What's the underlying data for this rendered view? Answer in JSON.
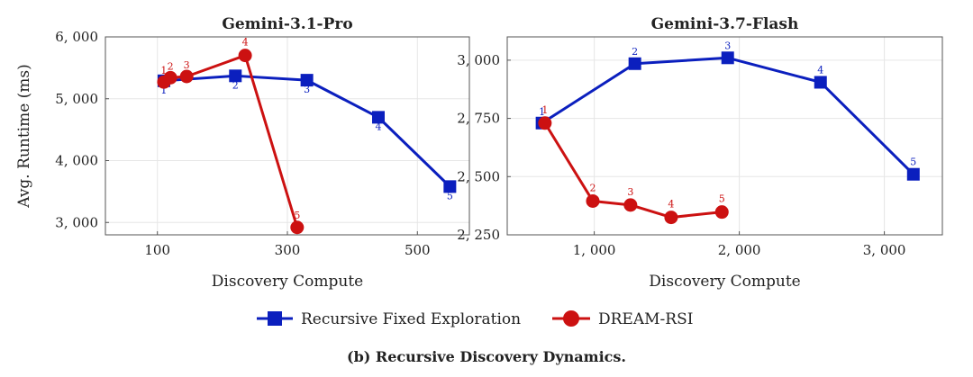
{
  "chart_data": [
    {
      "type": "line",
      "title": "Gemini-3.1-Pro",
      "xlabel": "Discovery Compute",
      "ylabel": "Avg. Runtime (ms)",
      "xlim": [
        20,
        580
      ],
      "ylim": [
        2800,
        6000
      ],
      "xticks": [
        100,
        300,
        500
      ],
      "xtick_labels": [
        "100",
        "300",
        "500"
      ],
      "yticks": [
        3000,
        4000,
        5000,
        6000
      ],
      "ytick_labels": [
        "3, 000",
        "4, 000",
        "5, 000",
        "6, 000"
      ],
      "grid": true,
      "series": [
        {
          "name": "Recursive Fixed Exploration",
          "color": "#0b1fbe",
          "marker": "square",
          "x": [
            110,
            220,
            330,
            440,
            550
          ],
          "y": [
            5290,
            5370,
            5300,
            4700,
            3580
          ],
          "labels": [
            "1",
            "2",
            "3",
            "4",
            "5"
          ]
        },
        {
          "name": "DREAM-RSI",
          "color": "#cc1111",
          "marker": "circle",
          "x": [
            110,
            120,
            145,
            235,
            315
          ],
          "y": [
            5270,
            5340,
            5360,
            5700,
            2920
          ],
          "labels": [
            "1",
            "2",
            "3",
            "4",
            "5"
          ]
        }
      ]
    },
    {
      "type": "line",
      "title": "Gemini-3.7-Flash",
      "xlabel": "Discovery Compute",
      "ylabel": "",
      "xlim": [
        400,
        3400
      ],
      "ylim": [
        2250,
        3100
      ],
      "xticks": [
        1000,
        2000,
        3000
      ],
      "xtick_labels": [
        "1, 000",
        "2, 000",
        "3, 000"
      ],
      "yticks": [
        2250,
        2500,
        2750,
        3000
      ],
      "ytick_labels": [
        "2, 250",
        "2, 500",
        "2, 750",
        "3, 000"
      ],
      "grid": true,
      "series": [
        {
          "name": "Recursive Fixed Exploration",
          "color": "#0b1fbe",
          "marker": "square",
          "x": [
            640,
            1280,
            1920,
            2560,
            3200
          ],
          "y": [
            2730,
            2985,
            3010,
            2905,
            2510
          ],
          "labels": [
            "1",
            "2",
            "3",
            "4",
            "5"
          ]
        },
        {
          "name": "DREAM-RSI",
          "color": "#cc1111",
          "marker": "circle",
          "x": [
            660,
            990,
            1250,
            1530,
            1880
          ],
          "y": [
            2730,
            2395,
            2378,
            2325,
            2348
          ],
          "labels": [
            "1",
            "2",
            "3",
            "4",
            "5"
          ]
        }
      ]
    }
  ],
  "legend": {
    "items": [
      {
        "label": "Recursive Fixed Exploration",
        "color": "#0b1fbe",
        "marker": "square"
      },
      {
        "label": "DREAM-RSI",
        "color": "#cc1111",
        "marker": "circle"
      }
    ]
  },
  "caption": "(b) Recursive Discovery Dynamics."
}
